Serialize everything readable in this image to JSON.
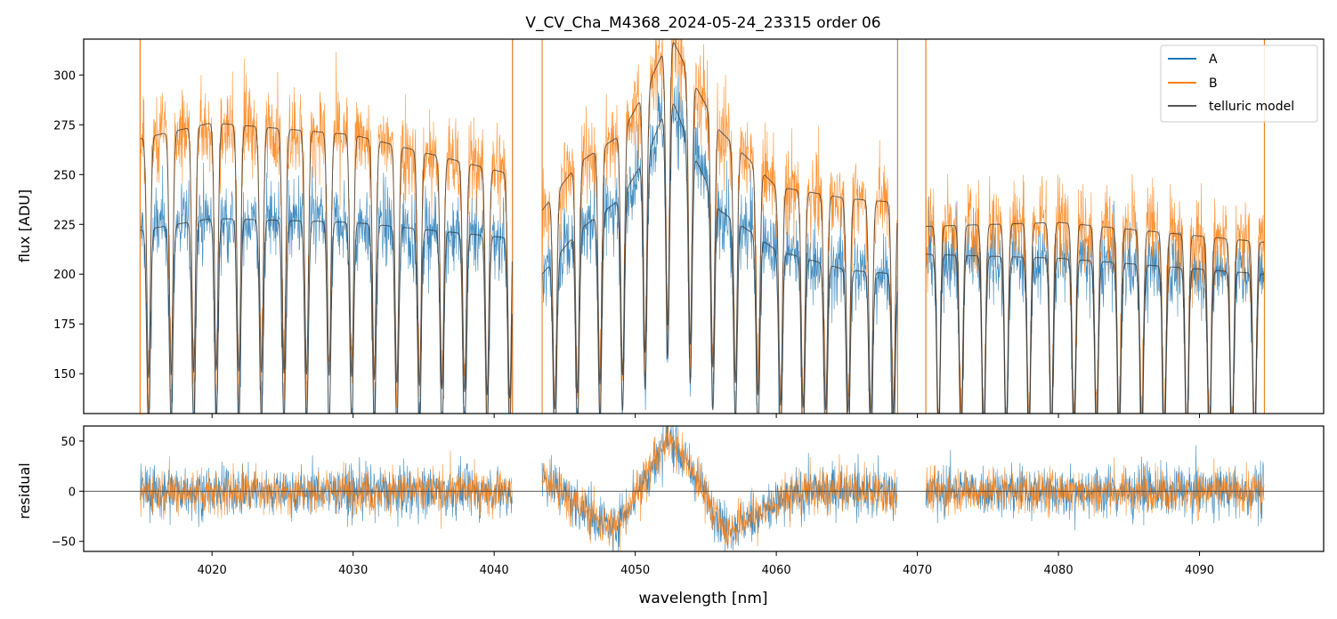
{
  "chart_data": [
    {
      "type": "line",
      "title": "V_CV_Cha_M4368_2024-05-24_23315  order 06",
      "xlabel": "",
      "ylabel": "flux [ADU]",
      "xlim": [
        4010.9,
        4098.8
      ],
      "ylim": [
        130,
        318
      ],
      "yticks": [
        150,
        175,
        200,
        225,
        250,
        275,
        300
      ],
      "ytick_labels": [
        "150",
        "175",
        "200",
        "225",
        "250",
        "275",
        "300"
      ],
      "legend": {
        "position": "top-right",
        "entries": [
          {
            "label": "A",
            "color": "#1f77b4"
          },
          {
            "label": "B",
            "color": "#ff7f0e"
          },
          {
            "label": "telluric model",
            "color": "#555555"
          }
        ]
      },
      "segments": [
        [
          4014.9,
          4041.3
        ],
        [
          4043.4,
          4068.6
        ],
        [
          4070.6,
          4094.6
        ]
      ],
      "series": [
        {
          "name": "A",
          "color": "#1f77b4",
          "continuum_x": [
            4014.9,
            4020,
            4030,
            4041.3,
            4043.4,
            4046,
            4049,
            4051,
            4052.5,
            4054,
            4056,
            4060,
            4065,
            4068.6,
            4070.6,
            4080,
            4094.6
          ],
          "continuum_y": [
            222,
            228,
            226,
            218,
            200,
            222,
            238,
            262,
            290,
            262,
            232,
            212,
            202,
            200,
            210,
            208,
            200
          ],
          "noise": 14
        },
        {
          "name": "B",
          "color": "#ff7f0e",
          "continuum_x": [
            4014.9,
            4020,
            4030,
            4041.3,
            4043.4,
            4046,
            4049,
            4051,
            4052.5,
            4054,
            4056,
            4060,
            4065,
            4068.6,
            4070.6,
            4080,
            4094.6
          ],
          "continuum_y": [
            268,
            276,
            270,
            250,
            232,
            256,
            270,
            296,
            320,
            298,
            272,
            244,
            238,
            236,
            224,
            226,
            216
          ],
          "noise": 16
        },
        {
          "name": "telluric model",
          "color": "#555555",
          "line_spacing_nm": 1.6,
          "line_depth": 0.45
        }
      ]
    },
    {
      "type": "line",
      "title": "",
      "xlabel": "wavelength [nm]",
      "ylabel": "residual",
      "xlim": [
        4010.9,
        4098.8
      ],
      "ylim": [
        -60,
        65
      ],
      "xticks": [
        4020,
        4030,
        4040,
        4050,
        4060,
        4070,
        4080,
        4090
      ],
      "xtick_labels": [
        "4020",
        "4030",
        "4040",
        "4050",
        "4060",
        "4070",
        "4080",
        "4090"
      ],
      "yticks": [
        -50,
        0,
        50
      ],
      "ytick_labels": [
        "−50",
        "0",
        "50"
      ],
      "reference_line": 0,
      "series": [
        {
          "name": "A",
          "color": "#1f77b4",
          "trend_x": [
            4043.4,
            4046,
            4048.5,
            4051,
            4052.5,
            4054,
            4056.5,
            4059,
            4062,
            4068.6
          ],
          "trend_y": [
            15,
            -15,
            -38,
            20,
            55,
            20,
            -40,
            -20,
            0,
            0
          ],
          "noise": 18
        },
        {
          "name": "B",
          "color": "#ff7f0e",
          "trend_x": [
            4043.4,
            4046,
            4048.5,
            4051,
            4052.5,
            4054,
            4056.5,
            4059,
            4062,
            4068.6
          ],
          "trend_y": [
            15,
            -15,
            -38,
            20,
            55,
            20,
            -40,
            -20,
            0,
            0
          ],
          "noise": 16
        }
      ]
    }
  ]
}
